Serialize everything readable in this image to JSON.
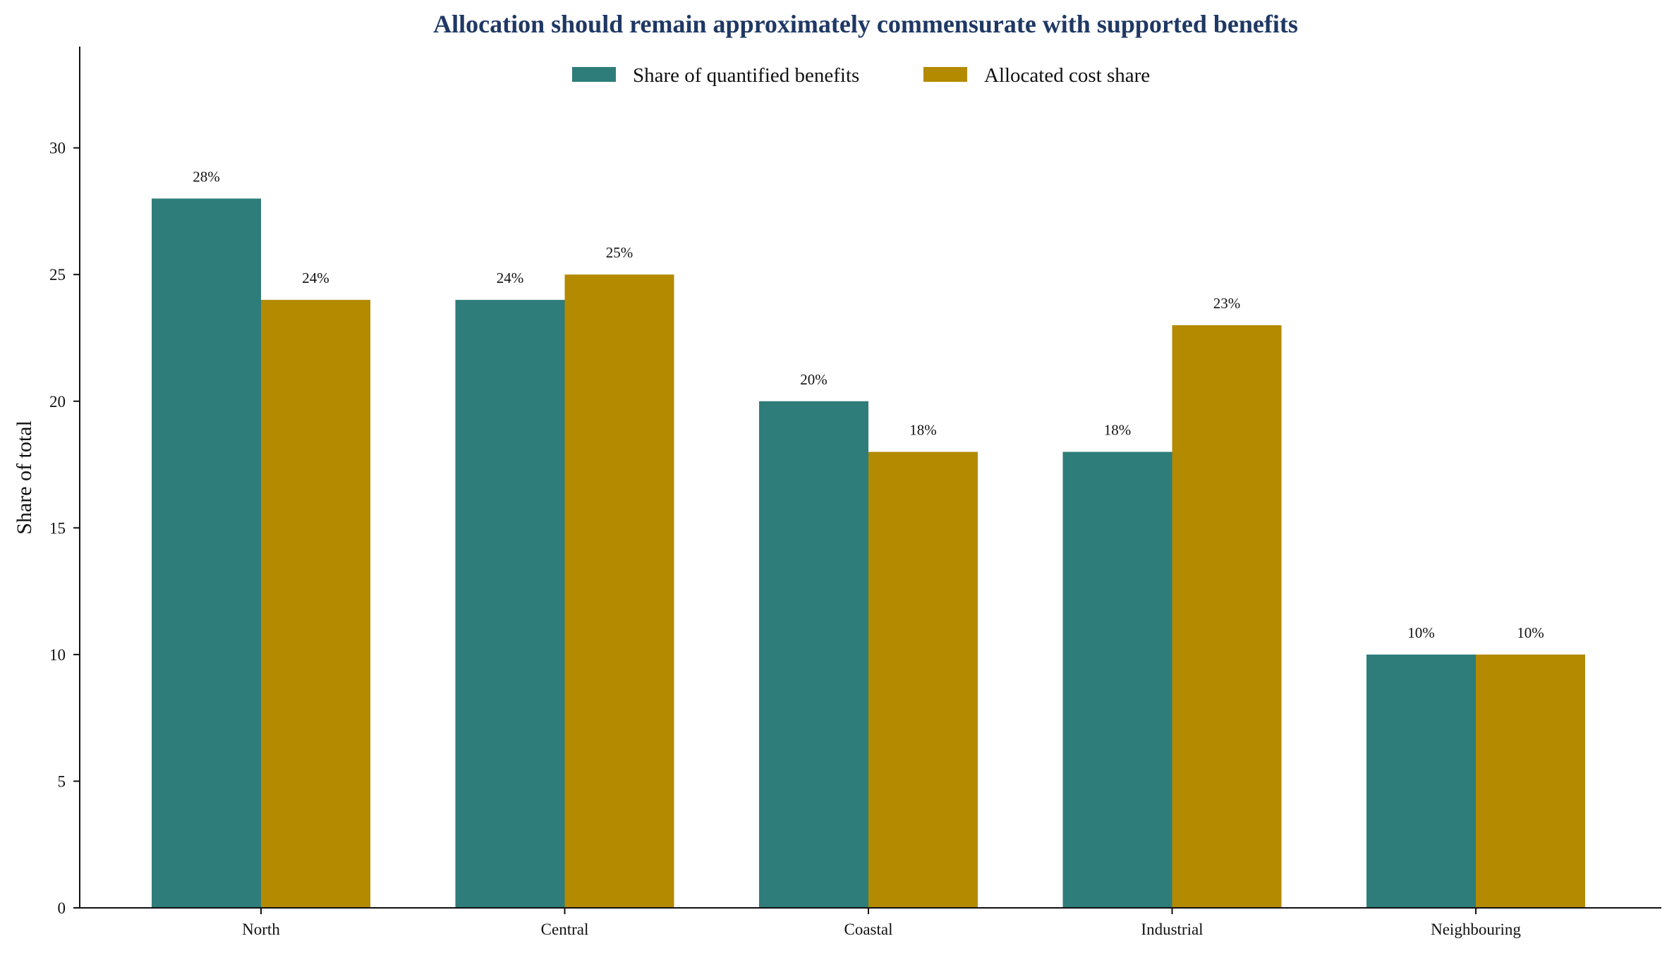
{
  "chart_data": {
    "type": "bar",
    "title": "Allocation should remain approximately commensurate with supported benefits",
    "xlabel": "",
    "ylabel": "Share of total",
    "categories": [
      "North",
      "Central",
      "Coastal",
      "Industrial",
      "Neighbouring"
    ],
    "series": [
      {
        "name": "Share of quantified benefits",
        "values": [
          28,
          24,
          20,
          18,
          10
        ],
        "color": "#2e7d7a"
      },
      {
        "name": "Allocated cost share",
        "values": [
          24,
          25,
          18,
          23,
          10
        ],
        "color": "#b38a00"
      }
    ],
    "data_label_suffix": "%",
    "ylim": [
      0,
      34
    ],
    "yticks": [
      0,
      5,
      10,
      15,
      20,
      25,
      30
    ],
    "grid": false,
    "legend_position": "top-center",
    "title_color": "#1f3864"
  }
}
